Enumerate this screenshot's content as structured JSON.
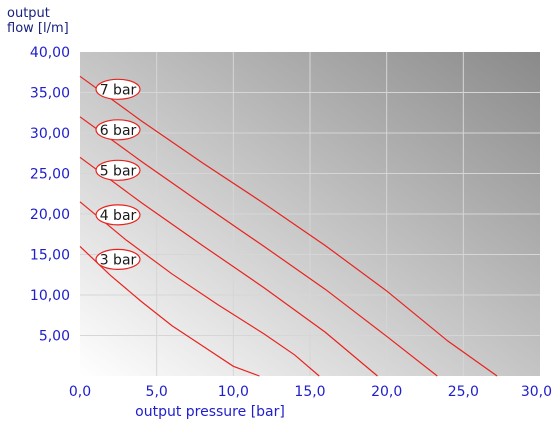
{
  "chart_data": {
    "type": "line",
    "ylabel_lines": [
      "output",
      "flow [l/m]"
    ],
    "xlabel": "output pressure [bar]",
    "xlim": [
      0,
      30
    ],
    "ylim": [
      0,
      40
    ],
    "x_ticks": [
      "0,0",
      "5,0",
      "10,0",
      "15,0",
      "20,0",
      "25,0",
      "30,0"
    ],
    "y_ticks": [
      "5,00",
      "10,00",
      "15,00",
      "20,00",
      "25,00",
      "30,00",
      "35,00",
      "40,00"
    ],
    "grid": true,
    "line_color": "#e8231e",
    "series": [
      {
        "name": "3 bar",
        "x": [
          0,
          2,
          4,
          6,
          8,
          10,
          11.7
        ],
        "y": [
          16,
          12.4,
          9.2,
          6.2,
          3.7,
          1.2,
          0
        ]
      },
      {
        "name": "4 bar",
        "x": [
          0,
          3,
          6,
          9,
          12,
          14,
          15.6
        ],
        "y": [
          21.5,
          16.8,
          12.6,
          8.8,
          5.2,
          2.6,
          0
        ]
      },
      {
        "name": "5 bar",
        "x": [
          0,
          4,
          8,
          12,
          16,
          19.4
        ],
        "y": [
          27,
          21.4,
          16.1,
          10.9,
          5.4,
          0
        ]
      },
      {
        "name": "6 bar",
        "x": [
          0,
          4,
          8,
          12,
          16,
          20,
          23.3
        ],
        "y": [
          32,
          26.5,
          21.2,
          16,
          10.7,
          4.9,
          0
        ]
      },
      {
        "name": "7 bar",
        "x": [
          0,
          4,
          8,
          12,
          16,
          20,
          24,
          27.2
        ],
        "y": [
          37,
          31.5,
          26.3,
          21.3,
          16.1,
          10.5,
          4.3,
          0
        ]
      }
    ]
  }
}
